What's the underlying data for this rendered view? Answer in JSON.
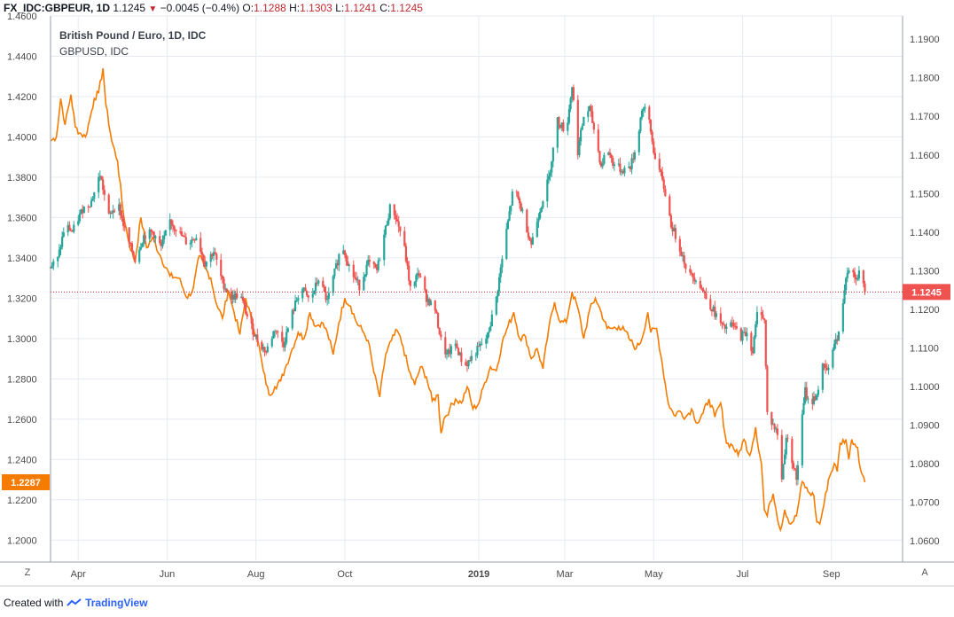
{
  "header": {
    "symbol": "FX_IDC:GBPEUR, 1D",
    "last": "1.1245",
    "arrow": "▼",
    "change": "−0.0045 (−0.4%)",
    "o_label": "O:",
    "o_value": "1.1288",
    "h_label": "H:",
    "h_value": "1.1303",
    "l_label": "L:",
    "l_value": "1.1241",
    "c_label": "C:",
    "c_value": "1.1245"
  },
  "legend": {
    "main": "British Pound / Euro, 1D, IDC",
    "secondary": "GBPUSD, IDC"
  },
  "footer": {
    "created_with": "Created with",
    "brand": "TradingView",
    "logo_icon": "tradingview-logo-icon"
  },
  "buttons": {
    "log_toggle": "Z",
    "auto_scale": "A"
  },
  "colors": {
    "up": "#26a69a",
    "down": "#ef5350",
    "compare": "#f57c00",
    "grid": "#e6eaf0",
    "axis_text": "#4a4a4a",
    "last_line": "#c2272d"
  },
  "chart_data": {
    "type": "candlestick+line",
    "title": "British Pound / Euro, 1D, IDC",
    "left_axis": {
      "series": "GBPUSD",
      "ylim": [
        1.19,
        1.46
      ],
      "ticks": [
        "1.4600",
        "1.4400",
        "1.4200",
        "1.4000",
        "1.3800",
        "1.3600",
        "1.3400",
        "1.3200",
        "1.3000",
        "1.2800",
        "1.2600",
        "1.2400",
        "1.2200",
        "1.2000"
      ],
      "last_label": "1.2287"
    },
    "right_axis": {
      "series": "GBPEUR",
      "ylim": [
        1.055,
        1.196
      ],
      "ticks": [
        "1.1900",
        "1.1800",
        "1.1700",
        "1.1600",
        "1.1500",
        "1.1400",
        "1.1300",
        "1.1200",
        "1.1100",
        "1.1000",
        "1.0900",
        "1.0800",
        "1.0700",
        "1.0600"
      ],
      "last_label": "1.1245"
    },
    "x_axis": {
      "labels": [
        "Apr",
        "Jun",
        "Aug",
        "Oct",
        "2019",
        "Mar",
        "May",
        "Jul",
        "Sep"
      ],
      "label_days": [
        19,
        80,
        141,
        202,
        294,
        353,
        414,
        475,
        536
      ],
      "bold_label": "2019",
      "start_date": "2018-03-13",
      "day_range": [
        0,
        580
      ]
    },
    "gbpeur_anchors": [
      [
        0,
        1.131
      ],
      [
        5,
        1.133
      ],
      [
        10,
        1.142
      ],
      [
        15,
        1.14
      ],
      [
        22,
        1.146
      ],
      [
        28,
        1.148
      ],
      [
        34,
        1.155
      ],
      [
        40,
        1.144
      ],
      [
        46,
        1.148
      ],
      [
        52,
        1.139
      ],
      [
        58,
        1.133
      ],
      [
        64,
        1.139
      ],
      [
        70,
        1.14
      ],
      [
        76,
        1.136
      ],
      [
        82,
        1.143
      ],
      [
        88,
        1.14
      ],
      [
        94,
        1.137
      ],
      [
        100,
        1.139
      ],
      [
        106,
        1.132
      ],
      [
        112,
        1.135
      ],
      [
        118,
        1.127
      ],
      [
        124,
        1.123
      ],
      [
        130,
        1.124
      ],
      [
        136,
        1.117
      ],
      [
        142,
        1.112
      ],
      [
        148,
        1.109
      ],
      [
        154,
        1.115
      ],
      [
        160,
        1.111
      ],
      [
        166,
        1.119
      ],
      [
        172,
        1.126
      ],
      [
        178,
        1.122
      ],
      [
        184,
        1.128
      ],
      [
        190,
        1.122
      ],
      [
        196,
        1.131
      ],
      [
        200,
        1.137
      ],
      [
        206,
        1.13
      ],
      [
        212,
        1.126
      ],
      [
        218,
        1.132
      ],
      [
        224,
        1.13
      ],
      [
        230,
        1.141
      ],
      [
        234,
        1.148
      ],
      [
        236,
        1.145
      ],
      [
        242,
        1.138
      ],
      [
        248,
        1.123
      ],
      [
        252,
        1.13
      ],
      [
        258,
        1.123
      ],
      [
        264,
        1.12
      ],
      [
        268,
        1.112
      ],
      [
        272,
        1.108
      ],
      [
        278,
        1.111
      ],
      [
        284,
        1.105
      ],
      [
        290,
        1.108
      ],
      [
        294,
        1.11
      ],
      [
        300,
        1.113
      ],
      [
        306,
        1.123
      ],
      [
        312,
        1.138
      ],
      [
        318,
        1.152
      ],
      [
        324,
        1.145
      ],
      [
        330,
        1.137
      ],
      [
        336,
        1.146
      ],
      [
        342,
        1.154
      ],
      [
        348,
        1.169
      ],
      [
        354,
        1.166
      ],
      [
        358,
        1.178
      ],
      [
        362,
        1.161
      ],
      [
        366,
        1.17
      ],
      [
        370,
        1.172
      ],
      [
        374,
        1.165
      ],
      [
        378,
        1.157
      ],
      [
        382,
        1.162
      ],
      [
        386,
        1.158
      ],
      [
        392,
        1.156
      ],
      [
        398,
        1.157
      ],
      [
        402,
        1.162
      ],
      [
        406,
        1.172
      ],
      [
        410,
        1.171
      ],
      [
        414,
        1.161
      ],
      [
        418,
        1.156
      ],
      [
        422,
        1.15
      ],
      [
        426,
        1.142
      ],
      [
        432,
        1.136
      ],
      [
        438,
        1.129
      ],
      [
        444,
        1.128
      ],
      [
        450,
        1.123
      ],
      [
        456,
        1.119
      ],
      [
        462,
        1.115
      ],
      [
        468,
        1.116
      ],
      [
        474,
        1.113
      ],
      [
        478,
        1.114
      ],
      [
        482,
        1.109
      ],
      [
        486,
        1.122
      ],
      [
        490,
        1.117
      ],
      [
        492,
        1.093
      ],
      [
        496,
        1.09
      ],
      [
        500,
        1.087
      ],
      [
        502,
        1.076
      ],
      [
        505,
        1.087
      ],
      [
        508,
        1.083
      ],
      [
        512,
        1.076
      ],
      [
        516,
        1.092
      ],
      [
        518,
        1.099
      ],
      [
        521,
        1.095
      ],
      [
        526,
        1.098
      ],
      [
        530,
        1.105
      ],
      [
        534,
        1.104
      ],
      [
        538,
        1.112
      ],
      [
        540,
        1.112
      ],
      [
        542,
        1.115
      ],
      [
        546,
        1.129
      ],
      [
        550,
        1.133
      ],
      [
        552,
        1.128
      ],
      [
        556,
        1.13
      ],
      [
        559,
        1.1245
      ]
    ],
    "gbpusd_anchors": [
      [
        0,
        1.398
      ],
      [
        4,
        1.4
      ],
      [
        7,
        1.419
      ],
      [
        10,
        1.406
      ],
      [
        14,
        1.421
      ],
      [
        17,
        1.405
      ],
      [
        20,
        1.402
      ],
      [
        24,
        1.4
      ],
      [
        27,
        1.409
      ],
      [
        30,
        1.419
      ],
      [
        33,
        1.422
      ],
      [
        36,
        1.434
      ],
      [
        38,
        1.416
      ],
      [
        42,
        1.398
      ],
      [
        46,
        1.388
      ],
      [
        50,
        1.362
      ],
      [
        54,
        1.347
      ],
      [
        58,
        1.338
      ],
      [
        62,
        1.36
      ],
      [
        66,
        1.345
      ],
      [
        70,
        1.35
      ],
      [
        76,
        1.34
      ],
      [
        82,
        1.331
      ],
      [
        88,
        1.33
      ],
      [
        94,
        1.32
      ],
      [
        98,
        1.325
      ],
      [
        102,
        1.341
      ],
      [
        106,
        1.335
      ],
      [
        110,
        1.33
      ],
      [
        114,
        1.317
      ],
      [
        118,
        1.31
      ],
      [
        122,
        1.324
      ],
      [
        126,
        1.313
      ],
      [
        130,
        1.302
      ],
      [
        134,
        1.32
      ],
      [
        138,
        1.309
      ],
      [
        142,
        1.3
      ],
      [
        146,
        1.284
      ],
      [
        150,
        1.272
      ],
      [
        154,
        1.276
      ],
      [
        158,
        1.279
      ],
      [
        162,
        1.287
      ],
      [
        166,
        1.295
      ],
      [
        170,
        1.303
      ],
      [
        174,
        1.3
      ],
      [
        178,
        1.313
      ],
      [
        182,
        1.306
      ],
      [
        186,
        1.308
      ],
      [
        190,
        1.303
      ],
      [
        194,
        1.292
      ],
      [
        198,
        1.308
      ],
      [
        202,
        1.32
      ],
      [
        206,
        1.316
      ],
      [
        210,
        1.308
      ],
      [
        214,
        1.304
      ],
      [
        218,
        1.299
      ],
      [
        222,
        1.283
      ],
      [
        226,
        1.271
      ],
      [
        230,
        1.292
      ],
      [
        234,
        1.299
      ],
      [
        238,
        1.304
      ],
      [
        242,
        1.296
      ],
      [
        246,
        1.284
      ],
      [
        250,
        1.277
      ],
      [
        254,
        1.286
      ],
      [
        258,
        1.281
      ],
      [
        262,
        1.269
      ],
      [
        266,
        1.272
      ],
      [
        268,
        1.253
      ],
      [
        270,
        1.26
      ],
      [
        274,
        1.265
      ],
      [
        278,
        1.27
      ],
      [
        282,
        1.268
      ],
      [
        286,
        1.276
      ],
      [
        290,
        1.265
      ],
      [
        294,
        1.268
      ],
      [
        298,
        1.278
      ],
      [
        302,
        1.286
      ],
      [
        306,
        1.284
      ],
      [
        310,
        1.298
      ],
      [
        314,
        1.306
      ],
      [
        318,
        1.313
      ],
      [
        322,
        1.3
      ],
      [
        326,
        1.301
      ],
      [
        330,
        1.29
      ],
      [
        334,
        1.295
      ],
      [
        338,
        1.285
      ],
      [
        342,
        1.305
      ],
      [
        346,
        1.318
      ],
      [
        350,
        1.308
      ],
      [
        354,
        1.308
      ],
      [
        358,
        1.323
      ],
      [
        362,
        1.315
      ],
      [
        366,
        1.3
      ],
      [
        370,
        1.314
      ],
      [
        374,
        1.32
      ],
      [
        378,
        1.313
      ],
      [
        382,
        1.305
      ],
      [
        386,
        1.305
      ],
      [
        390,
        1.306
      ],
      [
        394,
        1.304
      ],
      [
        398,
        1.299
      ],
      [
        402,
        1.295
      ],
      [
        406,
        1.3
      ],
      [
        410,
        1.313
      ],
      [
        412,
        1.303
      ],
      [
        416,
        1.305
      ],
      [
        420,
        1.287
      ],
      [
        424,
        1.268
      ],
      [
        428,
        1.262
      ],
      [
        432,
        1.264
      ],
      [
        436,
        1.261
      ],
      [
        440,
        1.265
      ],
      [
        444,
        1.258
      ],
      [
        448,
        1.263
      ],
      [
        452,
        1.27
      ],
      [
        456,
        1.261
      ],
      [
        460,
        1.268
      ],
      [
        464,
        1.248
      ],
      [
        468,
        1.247
      ],
      [
        472,
        1.242
      ],
      [
        476,
        1.25
      ],
      [
        480,
        1.242
      ],
      [
        484,
        1.256
      ],
      [
        486,
        1.245
      ],
      [
        488,
        1.238
      ],
      [
        490,
        1.215
      ],
      [
        492,
        1.212
      ],
      [
        494,
        1.219
      ],
      [
        496,
        1.223
      ],
      [
        498,
        1.215
      ],
      [
        501,
        1.205
      ],
      [
        504,
        1.215
      ],
      [
        508,
        1.208
      ],
      [
        512,
        1.212
      ],
      [
        516,
        1.229
      ],
      [
        520,
        1.224
      ],
      [
        524,
        1.222
      ],
      [
        526,
        1.209
      ],
      [
        528,
        1.208
      ],
      [
        531,
        1.218
      ],
      [
        534,
        1.23
      ],
      [
        538,
        1.238
      ],
      [
        540,
        1.234
      ],
      [
        542,
        1.248
      ],
      [
        546,
        1.25
      ],
      [
        548,
        1.24
      ],
      [
        550,
        1.25
      ],
      [
        554,
        1.246
      ],
      [
        556,
        1.235
      ],
      [
        559,
        1.2287
      ]
    ]
  }
}
